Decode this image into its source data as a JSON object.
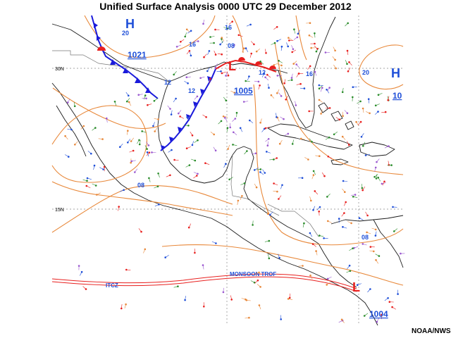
{
  "title": "Unified Surface Analysis 0000 UTC 29 December 2012",
  "credit": "NOAA/NWS",
  "latitude_labels": [
    "30N",
    "15N"
  ],
  "pressure_centers": [
    {
      "kind": "H",
      "value": "1021"
    },
    {
      "kind": "L",
      "value": "1005"
    },
    {
      "kind": "H",
      "value": "10"
    },
    {
      "kind": "L",
      "value": "1004"
    }
  ],
  "isobar_labels": [
    "20",
    "16",
    "08",
    "12",
    "12",
    "16",
    "20",
    "12",
    "08",
    "08",
    "16"
  ],
  "zone_labels": [
    "ITCZ",
    "MONSOON TROF"
  ],
  "colors": {
    "isobar": "#e8883a",
    "cold_front": "#1a1adb",
    "warm_front": "#e8201f",
    "low_symbol": "#e8201f",
    "high_symbol": "#1f4fd8",
    "coastline": "#1a1a1a",
    "border": "#777777",
    "grid": "#888888",
    "station_colors": [
      "#e8883a",
      "#9b59d0",
      "#2a8c2a",
      "#e8201f",
      "#1f4fd8"
    ]
  }
}
